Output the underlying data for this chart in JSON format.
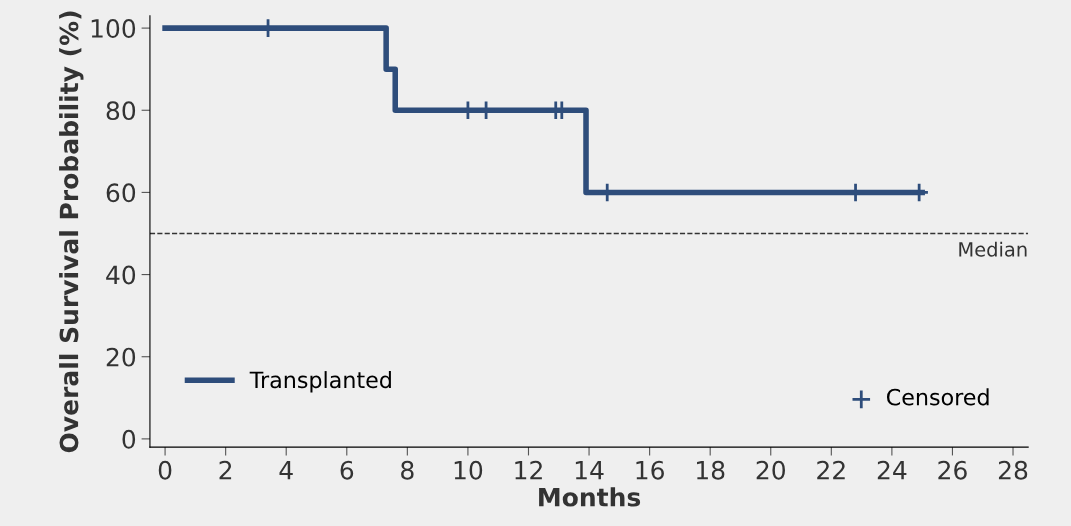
{
  "chart_data": {
    "type": "step",
    "xlabel": "Months",
    "ylabel": "Overall Survival Probability (%)",
    "xlim": [
      -0.5,
      28.5
    ],
    "ylim": [
      -2,
      103
    ],
    "xticks": [
      0,
      2,
      4,
      6,
      8,
      10,
      12,
      14,
      16,
      18,
      20,
      22,
      24,
      26,
      28
    ],
    "yticks": [
      0,
      20,
      40,
      60,
      80,
      100
    ],
    "grid": false,
    "legend": "bottom left",
    "series": [
      {
        "name": "Transplanted",
        "color": "#2e4d7b",
        "x": [
          0,
          7.3,
          7.6,
          13.9,
          25.0
        ],
        "values": [
          100,
          90,
          80,
          60,
          60
        ]
      },
      {
        "name": "Censored",
        "type": "scatter",
        "marker": "cross",
        "color": "#2e4d7b",
        "x": [
          3.4,
          10.0,
          10.6,
          12.9,
          13.1,
          14.6,
          22.8,
          24.9
        ],
        "values": [
          100,
          80,
          80,
          80,
          80,
          60,
          60,
          60
        ]
      }
    ],
    "ref_lines": [
      {
        "axis": "y",
        "value": 50,
        "label": "Median",
        "color": "#333333",
        "line_style": "dashed"
      }
    ]
  }
}
